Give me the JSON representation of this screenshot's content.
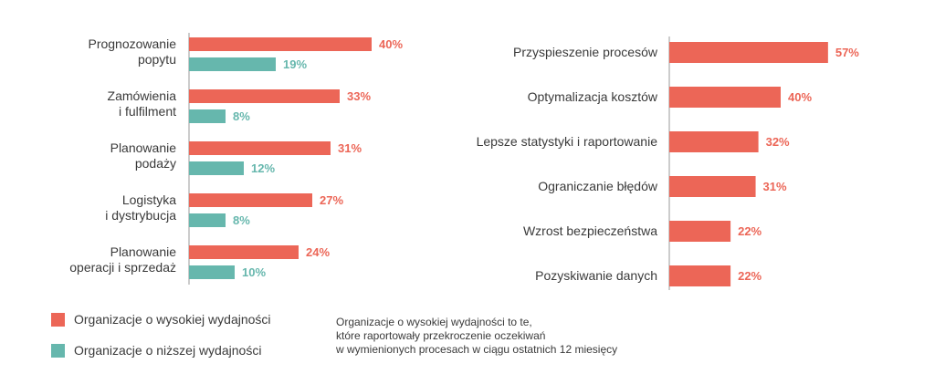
{
  "colors": {
    "high": "#ec6657",
    "low": "#66b7ad",
    "text": "#3a3a3a",
    "axis": "#9a9a9a"
  },
  "legend": {
    "high_label": "Organizacje o wysokiej wydajności",
    "low_label": "Organizacje o niższej wydajności"
  },
  "note": {
    "lines": [
      "Organizacje o wysokiej wydajności to te,",
      "które raportowały przekroczenie oczekiwań",
      "w wymienionych procesach w ciągu ostatnich 12 miesięcy"
    ]
  },
  "chart_data": [
    {
      "type": "bar",
      "orientation": "horizontal",
      "categories": [
        [
          "Prognozowanie",
          "popytu"
        ],
        [
          "Zamówienia",
          "i fulfilment"
        ],
        [
          "Planowanie",
          "podaży"
        ],
        [
          "Logistyka",
          "i dystrybucja"
        ],
        [
          "Planowanie",
          "operacji i sprzedaż"
        ]
      ],
      "series": [
        {
          "name": "Organizacje o wysokiej wydajności",
          "values": [
            40,
            33,
            31,
            27,
            24
          ],
          "labels": [
            "40%",
            "33%",
            "31%",
            "27%",
            "24%"
          ]
        },
        {
          "name": "Organizacje o niższej wydajności",
          "values": [
            19,
            8,
            12,
            8,
            10
          ],
          "labels": [
            "19%",
            "8%",
            "12%",
            "8%",
            "10%"
          ]
        }
      ],
      "unit": "%"
    },
    {
      "type": "bar",
      "orientation": "horizontal",
      "categories": [
        "Przyspieszenie procesów",
        "Optymalizacja kosztów",
        "Lepsze statystyki i raportowanie",
        "Ograniczanie błędów",
        "Wzrost bezpieczeństwa",
        "Pozyskiwanie danych"
      ],
      "series": [
        {
          "name": "Organizacje o wysokiej wydajności",
          "values": [
            57,
            40,
            32,
            31,
            22,
            22
          ],
          "labels": [
            "57%",
            "40%",
            "32%",
            "31%",
            "22%",
            "22%"
          ]
        }
      ],
      "unit": "%"
    }
  ]
}
